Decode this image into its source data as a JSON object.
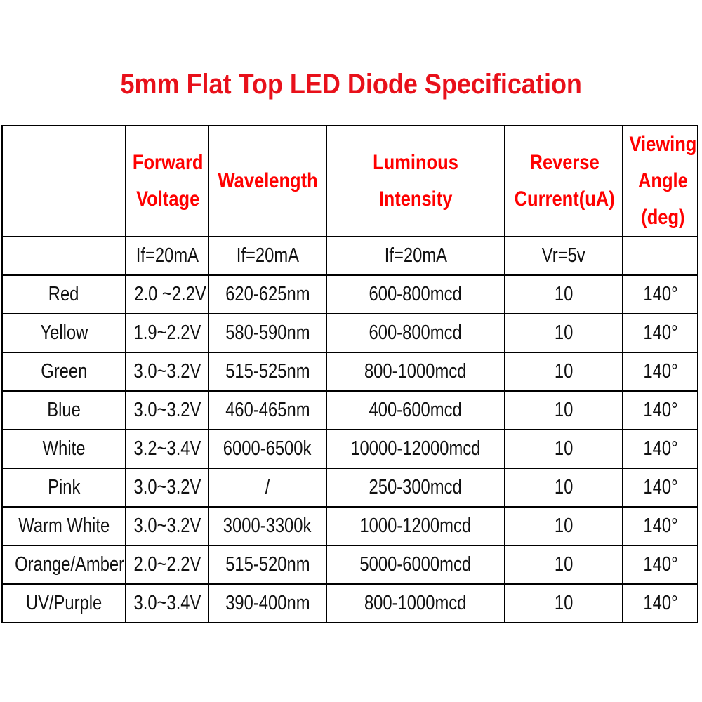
{
  "title": "5mm Flat Top LED Diode Specification",
  "colors": {
    "title": "#e8101a",
    "header_text": "#ff0000"
  },
  "headers": [
    "",
    "Forward Voltage",
    "Wavelength",
    "Luminous Intensity",
    "Reverse Current(uA)",
    "Viewing Angle (deg)"
  ],
  "conditions": [
    "",
    "If=20mA",
    "If=20mA",
    "If=20mA",
    "Vr=5v",
    ""
  ],
  "rows": [
    [
      "Red",
      "2.0 ~2.2V",
      "620-625nm",
      "600-800mcd",
      "10",
      "140°"
    ],
    [
      "Yellow",
      "1.9~2.2V",
      "580-590nm",
      "600-800mcd",
      "10",
      "140°"
    ],
    [
      "Green",
      "3.0~3.2V",
      "515-525nm",
      "800-1000mcd",
      "10",
      "140°"
    ],
    [
      "Blue",
      "3.0~3.2V",
      "460-465nm",
      "400-600mcd",
      "10",
      "140°"
    ],
    [
      "White",
      "3.2~3.4V",
      "6000-6500k",
      "10000-12000mcd",
      "10",
      "140°"
    ],
    [
      "Pink",
      "3.0~3.2V",
      "/",
      "250-300mcd",
      "10",
      "140°"
    ],
    [
      "Warm White",
      "3.0~3.2V",
      "3000-3300k",
      "1000-1200mcd",
      "10",
      "140°"
    ],
    [
      "Orange/Amber",
      "2.0~2.2V",
      "515-520nm",
      "5000-6000mcd",
      "10",
      "140°"
    ],
    [
      "UV/Purple",
      "3.0~3.4V",
      "390-400nm",
      "800-1000mcd",
      "10",
      "140°"
    ]
  ]
}
